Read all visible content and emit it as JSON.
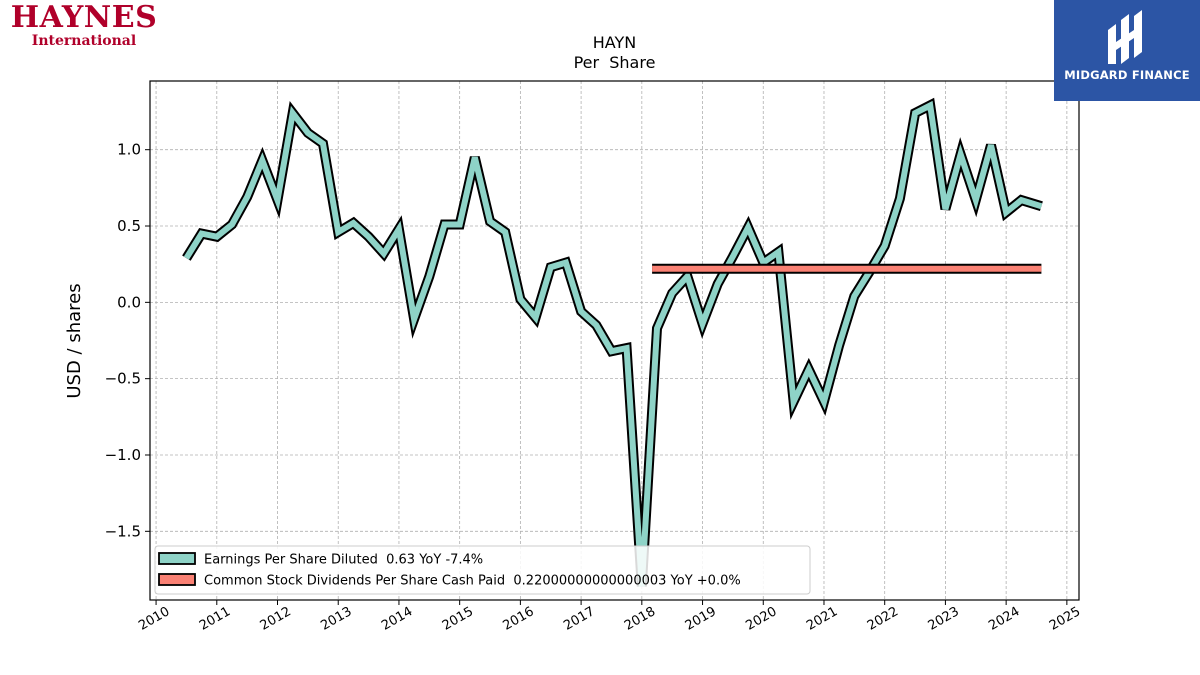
{
  "logos": {
    "company_line1": "HAYNES",
    "company_line2": "International",
    "brand": "MIDGARD FINANCE",
    "brand_color": "#2c55a5",
    "company_color": "#b0002a"
  },
  "chart_data": {
    "type": "line",
    "title": "HAYN",
    "subtitle": "Per  Share",
    "ylabel": "USD / shares",
    "xlabel": "",
    "ylim": [
      -1.95,
      1.45
    ],
    "xlim": [
      2009.9,
      2025.2
    ],
    "yticks": [
      -1.5,
      -1.0,
      -0.5,
      0.0,
      0.5,
      1.0
    ],
    "ytick_labels": [
      "−1.5",
      "−1.0",
      "−0.5",
      "0.0",
      "0.5",
      "1.0"
    ],
    "xticks": [
      2010,
      2011,
      2012,
      2013,
      2014,
      2015,
      2016,
      2017,
      2018,
      2019,
      2020,
      2021,
      2022,
      2023,
      2024,
      2025
    ],
    "xtick_labels": [
      "2010",
      "2011",
      "2012",
      "2013",
      "2014",
      "2015",
      "2016",
      "2017",
      "2018",
      "2019",
      "2020",
      "2021",
      "2022",
      "2023",
      "2024",
      "2025"
    ],
    "grid": true,
    "legend_position": "lower-left",
    "series": [
      {
        "name": "Earnings Per Share Diluted",
        "legend_label": "Earnings Per Share Diluted  0.63 YoY -7.4%",
        "color": "#8ed3c7",
        "x": [
          2010.5,
          2010.75,
          2011.0,
          2011.25,
          2011.5,
          2011.75,
          2012.0,
          2012.25,
          2012.5,
          2012.75,
          2013.0,
          2013.25,
          2013.5,
          2013.75,
          2014.0,
          2014.25,
          2014.5,
          2014.75,
          2015.0,
          2015.25,
          2015.5,
          2015.75,
          2016.0,
          2016.25,
          2016.5,
          2016.75,
          2017.0,
          2017.25,
          2017.5,
          2017.75,
          2018.0,
          2018.25,
          2018.5,
          2018.75,
          2019.0,
          2019.25,
          2019.5,
          2019.75,
          2020.0,
          2020.25,
          2020.5,
          2020.75,
          2021.0,
          2021.25,
          2021.5,
          2021.75,
          2022.0,
          2022.25,
          2022.5,
          2022.75,
          2023.0,
          2023.25,
          2023.5,
          2023.75,
          2024.0,
          2024.25,
          2024.58
        ],
        "values": [
          0.29,
          0.45,
          0.43,
          0.51,
          0.69,
          0.93,
          0.67,
          1.24,
          1.11,
          1.04,
          0.46,
          0.52,
          0.43,
          0.32,
          0.48,
          -0.11,
          0.17,
          0.51,
          0.51,
          0.95,
          0.53,
          0.46,
          0.02,
          -0.1,
          0.23,
          0.26,
          -0.06,
          -0.15,
          -0.32,
          -0.3,
          -1.86,
          -0.17,
          0.06,
          0.17,
          -0.14,
          0.12,
          0.3,
          0.49,
          0.26,
          0.33,
          -0.65,
          -0.44,
          -0.65,
          -0.28,
          0.04,
          0.2,
          0.37,
          0.68,
          1.24,
          1.29,
          0.61,
          0.97,
          0.67,
          1.03,
          0.59,
          0.67,
          0.63
        ]
      },
      {
        "name": "Common Stock Dividends Per Share Cash Paid",
        "legend_label": "Common Stock Dividends Per Share Cash Paid  0.22000000000000003 YoY +0.0%",
        "color": "#fa8174",
        "x": [
          2018.17,
          2024.58
        ],
        "values": [
          0.22,
          0.22
        ]
      }
    ]
  }
}
